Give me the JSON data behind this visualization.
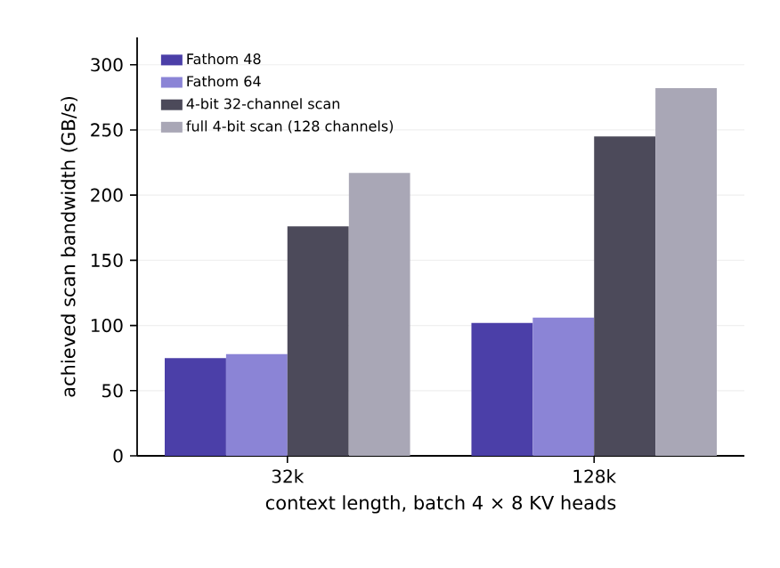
{
  "chart_data": {
    "type": "bar",
    "xlabel": "context length, batch 4 × 8 KV heads",
    "ylabel": "achieved scan bandwidth (GB/s)",
    "categories": [
      "32k",
      "128k"
    ],
    "series": [
      {
        "name": "Fathom 48",
        "color": "#4b3fa8",
        "values": [
          75,
          102
        ]
      },
      {
        "name": "Fathom 64",
        "color": "#8b84d6",
        "values": [
          78,
          106
        ]
      },
      {
        "name": "4-bit 32-channel scan",
        "color": "#4c4a5a",
        "values": [
          176,
          245
        ]
      },
      {
        "name": "full 4-bit scan (128 channels)",
        "color": "#a9a7b6",
        "values": [
          217,
          282
        ]
      }
    ],
    "ylim": [
      0,
      321
    ],
    "yticks": [
      0,
      50,
      100,
      150,
      200,
      250,
      300
    ],
    "grid": "y",
    "legend": "top left"
  }
}
